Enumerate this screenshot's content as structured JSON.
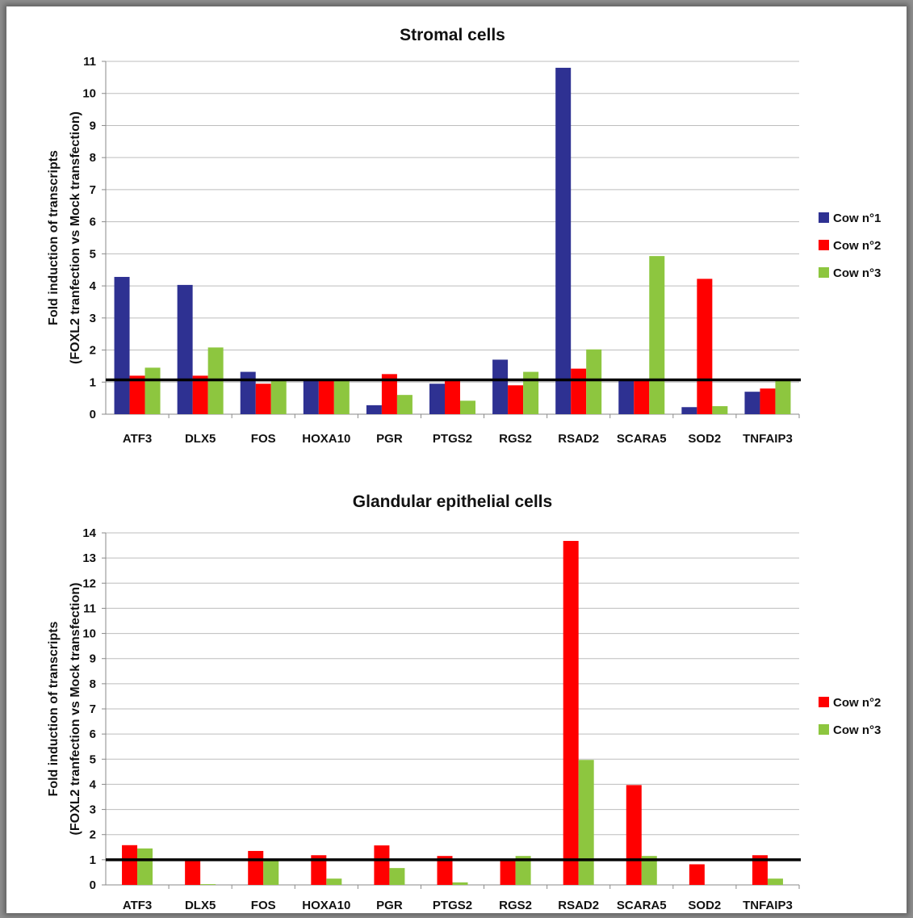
{
  "chart_data": [
    {
      "type": "bar",
      "title": "Stromal cells",
      "ylabel_line1": "Fold induction of transcripts",
      "ylabel_line2": "(FOXL2 tranfection vs Mock transfection)",
      "ylim": [
        0,
        11
      ],
      "yticks": [
        0,
        1,
        2,
        3,
        4,
        5,
        6,
        7,
        8,
        9,
        10,
        11
      ],
      "reference_line": 1.07,
      "grid": true,
      "legend_position": "right",
      "categories": [
        "ATF3",
        "DLX5",
        "FOS",
        "HOXA10",
        "PGR",
        "PTGS2",
        "RGS2",
        "RSAD2",
        "SCARA5",
        "SOD2",
        "TNFAIP3"
      ],
      "series": [
        {
          "name": "Cow n°1",
          "color": "#2e3192",
          "values": [
            4.28,
            4.03,
            1.32,
            1.05,
            0.28,
            0.95,
            1.7,
            10.8,
            1.05,
            0.22,
            0.7
          ]
        },
        {
          "name": "Cow n°2",
          "color": "#ff0000",
          "values": [
            1.2,
            1.2,
            0.95,
            1.05,
            1.25,
            1.05,
            0.9,
            1.42,
            1.05,
            4.22,
            0.8
          ]
        },
        {
          "name": "Cow n°3",
          "color": "#8dc63f",
          "values": [
            1.45,
            2.08,
            1.05,
            1.05,
            0.6,
            0.42,
            1.32,
            2.02,
            4.93,
            0.25,
            1.05
          ]
        }
      ]
    },
    {
      "type": "bar",
      "title": "Glandular epithelial cells",
      "ylabel_line1": "Fold induction of transcripts",
      "ylabel_line2": "(FOXL2 tranfection vs Mock transfection)",
      "ylim": [
        0,
        14
      ],
      "yticks": [
        0,
        1,
        2,
        3,
        4,
        5,
        6,
        7,
        8,
        9,
        10,
        11,
        12,
        13,
        14
      ],
      "reference_line": 1.0,
      "grid": true,
      "legend_position": "right",
      "categories": [
        "ATF3",
        "DLX5",
        "FOS",
        "HOXA10",
        "PGR",
        "PTGS2",
        "RGS2",
        "RSAD2",
        "SCARA5",
        "SOD2",
        "TNFAIP3"
      ],
      "series": [
        {
          "name": "Cow n°2",
          "color": "#ff0000",
          "values": [
            1.58,
            0.98,
            1.35,
            1.18,
            1.57,
            1.15,
            0.98,
            13.68,
            3.97,
            0.82,
            1.18
          ]
        },
        {
          "name": "Cow n°3",
          "color": "#8dc63f",
          "values": [
            1.45,
            0.03,
            0.98,
            0.25,
            0.67,
            0.1,
            1.15,
            4.97,
            1.15,
            0.0,
            0.25
          ]
        }
      ]
    }
  ]
}
